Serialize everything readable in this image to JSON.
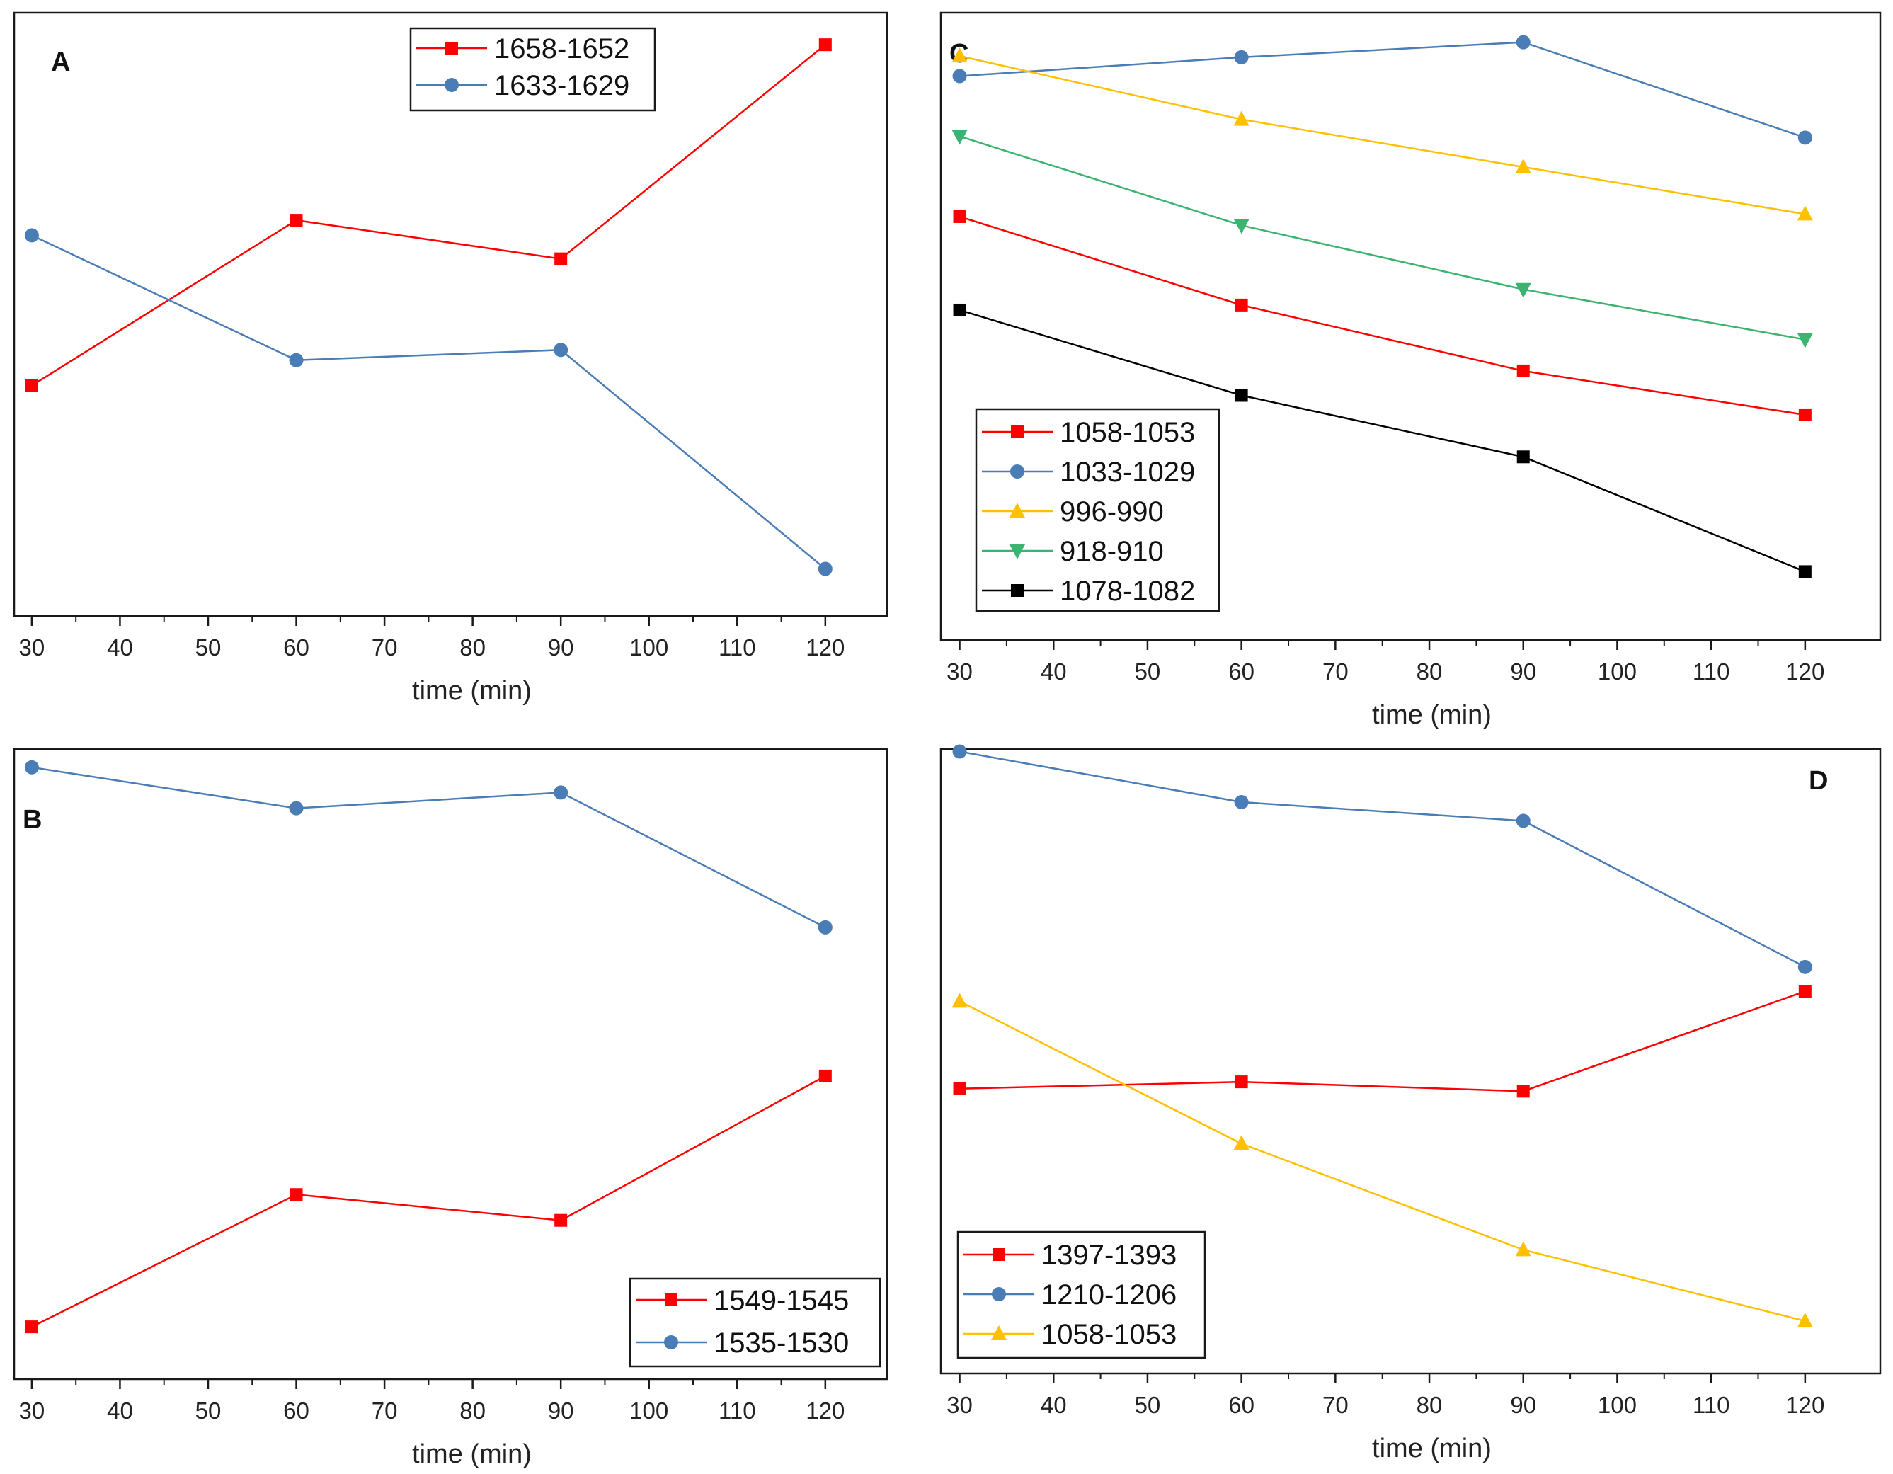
{
  "chart_data": [
    {
      "type": "line",
      "panel_label": "A",
      "xlabel": "time (min)",
      "ylabel": "",
      "x_ticks": [
        "30",
        "40",
        "50",
        "60",
        "70",
        "80",
        "90",
        "100",
        "110",
        "120"
      ],
      "xlim": [
        28,
        127
      ],
      "ylim": [
        0,
        100
      ],
      "legend_position": "top-center",
      "series": [
        {
          "name": "1658-1652",
          "color": "#ff0000",
          "marker": "square",
          "x": [
            30,
            60,
            90,
            120
          ],
          "y": [
            38.2,
            65.6,
            59.2,
            94.7
          ]
        },
        {
          "name": "1633-1629",
          "color": "#4a7cb5",
          "marker": "circle",
          "x": [
            30,
            60,
            90,
            120
          ],
          "y": [
            63.1,
            42.4,
            44.1,
            7.8
          ]
        }
      ]
    },
    {
      "type": "line",
      "panel_label": "C",
      "xlabel": "time (min)",
      "ylabel": "",
      "x_ticks": [
        "30",
        "40",
        "50",
        "60",
        "70",
        "80",
        "90",
        "100",
        "110",
        "120"
      ],
      "xlim": [
        28,
        128
      ],
      "ylim": [
        0,
        100
      ],
      "legend_position": "bottom-left",
      "series": [
        {
          "name": "1058-1053",
          "color": "#ff0000",
          "marker": "square",
          "x": [
            30,
            60,
            90,
            120
          ],
          "y": [
            67.5,
            53.4,
            42.9,
            35.9
          ]
        },
        {
          "name": "1033-1029",
          "color": "#4a7cb5",
          "marker": "circle",
          "x": [
            30,
            60,
            90,
            120
          ],
          "y": [
            89.9,
            92.9,
            95.3,
            80.1
          ]
        },
        {
          "name": "996-990",
          "color": "#ffc000",
          "marker": "triangle-up",
          "x": [
            30,
            60,
            90,
            120
          ],
          "y": [
            93.1,
            83.0,
            75.4,
            67.9
          ]
        },
        {
          "name": "918-910",
          "color": "#3cb371",
          "marker": "triangle-down",
          "x": [
            30,
            60,
            90,
            120
          ],
          "y": [
            80.3,
            66.1,
            55.9,
            47.9
          ]
        },
        {
          "name": "1078-1082",
          "color": "#000000",
          "marker": "square",
          "x": [
            30,
            60,
            90,
            120
          ],
          "y": [
            52.6,
            39.0,
            29.2,
            10.9
          ]
        }
      ]
    },
    {
      "type": "line",
      "panel_label": "B",
      "xlabel": "time (min)",
      "ylabel": "",
      "x_ticks": [
        "30",
        "40",
        "50",
        "60",
        "70",
        "80",
        "90",
        "100",
        "110",
        "120"
      ],
      "xlim": [
        28,
        127
      ],
      "ylim": [
        0,
        100
      ],
      "legend_position": "bottom-right",
      "series": [
        {
          "name": "1549-1545",
          "color": "#ff0000",
          "marker": "square",
          "x": [
            30,
            60,
            90,
            120
          ],
          "y": [
            8.3,
            29.3,
            25.2,
            48.1
          ]
        },
        {
          "name": "1535-1530",
          "color": "#4a7cb5",
          "marker": "circle",
          "x": [
            30,
            60,
            90,
            120
          ],
          "y": [
            97.1,
            90.6,
            93.1,
            71.7
          ]
        }
      ]
    },
    {
      "type": "line",
      "panel_label": "D",
      "xlabel": "time (min)",
      "ylabel": "",
      "x_ticks": [
        "30",
        "40",
        "50",
        "60",
        "70",
        "80",
        "90",
        "100",
        "110",
        "120"
      ],
      "xlim": [
        28,
        128
      ],
      "ylim": [
        0,
        100
      ],
      "legend_position": "bottom-left",
      "series": [
        {
          "name": "1397-1393",
          "color": "#ff0000",
          "marker": "square",
          "x": [
            30,
            60,
            90,
            120
          ],
          "y": [
            45.6,
            46.7,
            45.2,
            61.2
          ]
        },
        {
          "name": "1210-1206",
          "color": "#4a7cb5",
          "marker": "circle",
          "x": [
            30,
            60,
            90,
            120
          ],
          "y": [
            99.6,
            91.5,
            88.5,
            65.1
          ]
        },
        {
          "name": "1058-1053",
          "color": "#ffc000",
          "marker": "triangle-up",
          "x": [
            30,
            60,
            90,
            120
          ],
          "y": [
            59.6,
            36.8,
            19.8,
            8.4
          ]
        }
      ]
    }
  ]
}
